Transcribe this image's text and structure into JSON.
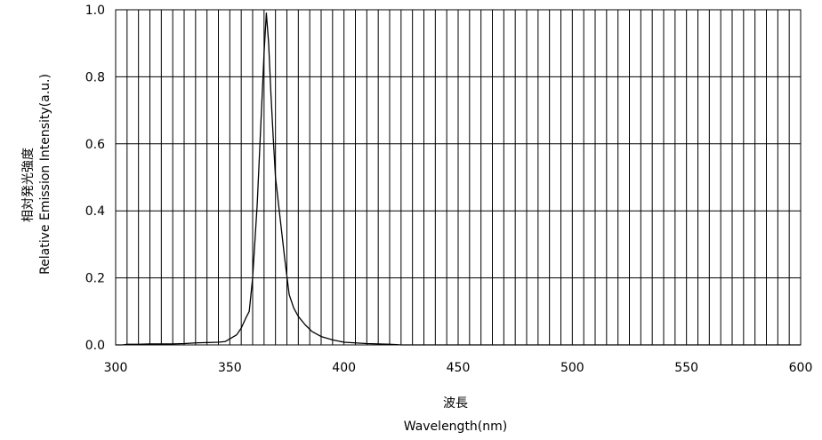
{
  "chart_data": {
    "type": "line",
    "title": "",
    "xlabel_jp": "波長",
    "xlabel": "Wavelength(nm)",
    "ylabel_jp": "相対発光強度",
    "ylabel": "Relative Emission Intensity(a.u.)",
    "xlim": [
      300,
      600
    ],
    "ylim": [
      0,
      1.0
    ],
    "x_ticks": [
      300,
      350,
      400,
      450,
      500,
      550,
      600
    ],
    "x_tick_labels": [
      "300",
      "350",
      "400",
      "450",
      "500",
      "550",
      "600"
    ],
    "y_ticks": [
      0,
      0.2,
      0.4,
      0.6,
      0.8,
      1.0
    ],
    "y_tick_labels": [
      "0.0",
      "0.2",
      "0.4",
      "0.6",
      "0.8",
      "1.0"
    ],
    "x_gridlines": [
      305,
      310,
      315,
      320,
      325,
      330,
      335,
      340,
      345,
      350,
      355,
      360,
      365,
      370,
      375,
      380,
      385,
      390,
      395,
      400,
      405,
      410,
      415,
      420,
      425,
      430,
      435,
      440,
      445,
      450,
      455,
      460,
      465,
      470,
      475,
      480,
      485,
      490,
      495,
      500,
      505,
      510,
      515,
      520,
      525,
      530,
      535,
      540,
      545,
      550,
      555,
      560,
      565,
      570,
      575,
      580,
      585,
      590,
      595
    ],
    "y_gridlines": [
      0.2,
      0.4,
      0.6,
      0.8
    ],
    "grid": true,
    "legend": "none",
    "line_color": "#000000",
    "series": [
      {
        "x": [
          300,
          303,
          305,
          310,
          315,
          320,
          325,
          330,
          335,
          340,
          345,
          348,
          350,
          353,
          355,
          357,
          358.5,
          360,
          362,
          364,
          365,
          366,
          367,
          368,
          369,
          370,
          372,
          374,
          376,
          378,
          380,
          383,
          386,
          390,
          395,
          400,
          405,
          410,
          415,
          420,
          423,
          425,
          430,
          450,
          500,
          550,
          600
        ],
        "y": [
          0.0,
          0.0,
          0.002,
          0.002,
          0.003,
          0.003,
          0.003,
          0.004,
          0.006,
          0.007,
          0.008,
          0.01,
          0.018,
          0.03,
          0.05,
          0.08,
          0.1,
          0.2,
          0.42,
          0.72,
          0.87,
          0.99,
          0.9,
          0.75,
          0.62,
          0.5,
          0.38,
          0.26,
          0.15,
          0.11,
          0.085,
          0.06,
          0.04,
          0.025,
          0.015,
          0.008,
          0.006,
          0.004,
          0.003,
          0.002,
          0.001,
          0.0,
          0.0,
          0.0,
          0.0,
          0.0,
          0.0
        ]
      }
    ]
  }
}
